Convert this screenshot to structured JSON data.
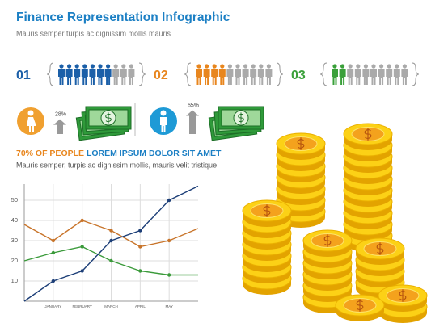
{
  "header": {
    "title": "Finance Representation Infographic",
    "subtitle": "Mauris semper turpis ac dignissim mollis mauris"
  },
  "rows": [
    {
      "label": "01",
      "highlighted": 7,
      "total": 10,
      "color": "#1b5fa8"
    },
    {
      "label": "02",
      "highlighted": 4,
      "total": 10,
      "color": "#e8861e"
    },
    {
      "label": "03",
      "highlighted": 2,
      "total": 10,
      "color": "#3aa03a"
    }
  ],
  "stats": [
    {
      "percent": {
        "value": 28,
        "label": "28%"
      },
      "color": "#f0a030"
    },
    {
      "percent": {
        "value": 65,
        "label": "65%"
      },
      "color": "#1e9ad6"
    }
  ],
  "headline": {
    "highlight": "70% OF PEOPLE",
    "text": "LOREM IPSUM DOLOR SIT AMET",
    "subtitle": "Mauris semper, turpis ac dignissim mollis, mauris velit tristique"
  },
  "chart_data": {
    "type": "line",
    "categories": [
      null,
      "JANUARY",
      "FEBRUARY",
      "MARCH",
      "APRIL",
      "MAY",
      null
    ],
    "series": [
      {
        "color": "#c8742a",
        "values": [
          38,
          30,
          40,
          35,
          27,
          30,
          36
        ]
      },
      {
        "color": "#3a9a3a",
        "values": [
          20,
          24,
          27,
          20,
          15,
          13,
          13
        ]
      },
      {
        "color": "#1d3f78",
        "values": [
          0,
          10,
          15,
          30,
          35,
          50,
          57
        ]
      }
    ],
    "ylim": [
      0,
      58
    ],
    "yticks": [
      10,
      20,
      30,
      40,
      50
    ],
    "grid": true
  }
}
